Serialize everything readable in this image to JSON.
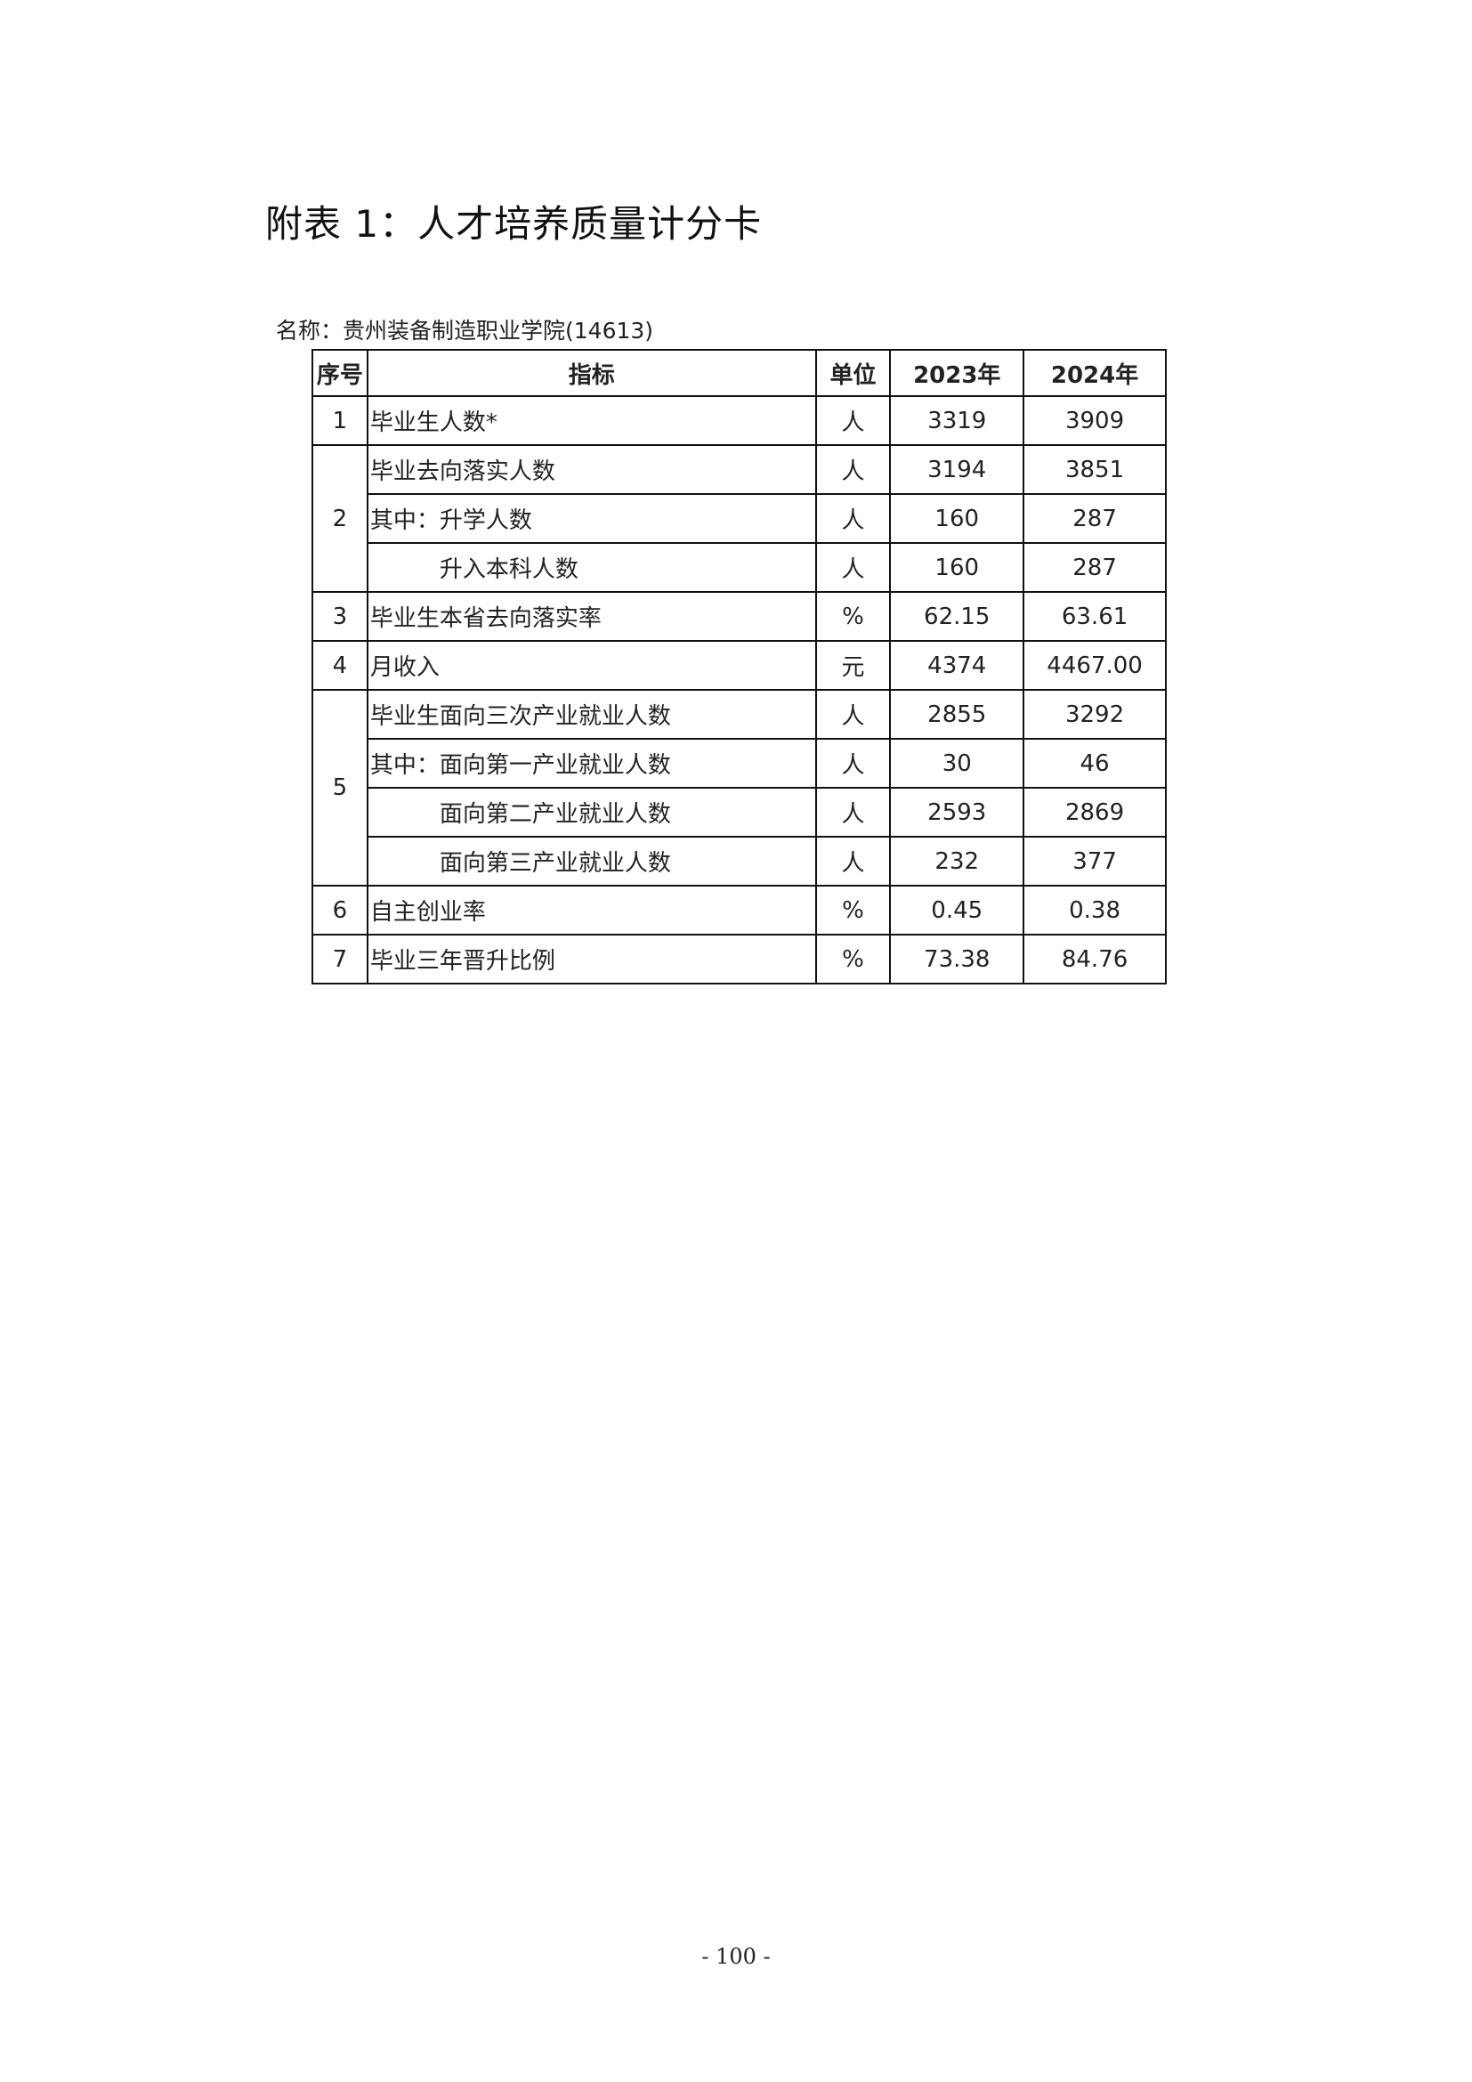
{
  "title": "附表 1：人才培养质量计分卡",
  "name_label": "名称：贵州装备制造职业学院(14613)",
  "table": {
    "headers": [
      "序号",
      "指标",
      "单位",
      "2023年",
      "2024年"
    ],
    "rows": [
      {
        "seq": "1",
        "indicator": "毕业生人数*",
        "unit": "人",
        "y2023": "3319",
        "y2024": "3909"
      },
      {
        "seq": "2",
        "indicator": "毕业去向落实人数",
        "unit": "人",
        "y2023": "3194",
        "y2024": "3851"
      },
      {
        "seq": "",
        "indicator": "其中：升学人数",
        "unit": "人",
        "y2023": "160",
        "y2024": "287"
      },
      {
        "seq": "",
        "indicator": "升入本科人数",
        "unit": "人",
        "y2023": "160",
        "y2024": "287"
      },
      {
        "seq": "3",
        "indicator": "毕业生本省去向落实率",
        "unit": "%",
        "y2023": "62.15",
        "y2024": "63.61"
      },
      {
        "seq": "4",
        "indicator": "月收入",
        "unit": "元",
        "y2023": "4374",
        "y2024": "4467.00"
      },
      {
        "seq": "5",
        "indicator": "毕业生面向三次产业就业人数",
        "unit": "人",
        "y2023": "2855",
        "y2024": "3292"
      },
      {
        "seq": "",
        "indicator": "其中：面向第一产业就业人数",
        "unit": "人",
        "y2023": "30",
        "y2024": "46"
      },
      {
        "seq": "",
        "indicator": "面向第二产业就业人数",
        "unit": "人",
        "y2023": "2593",
        "y2024": "2869"
      },
      {
        "seq": "",
        "indicator": "面向第三产业就业人数",
        "unit": "人",
        "y2023": "232",
        "y2024": "377"
      },
      {
        "seq": "6",
        "indicator": "自主创业率",
        "unit": "%",
        "y2023": "0.45",
        "y2024": "0.38"
      },
      {
        "seq": "7",
        "indicator": "毕业三年晋升比例",
        "unit": "%",
        "y2023": "73.38",
        "y2024": "84.76"
      }
    ]
  },
  "page_number": "- 100 -"
}
